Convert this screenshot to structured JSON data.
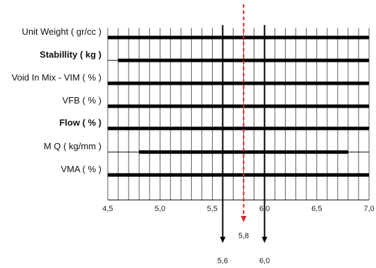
{
  "chart_data": {
    "type": "line",
    "xlim": [
      4.5,
      7.0
    ],
    "x_ticks": [
      "4,5",
      "5,0",
      "5,5",
      "6,0",
      "6,5",
      "7,0"
    ],
    "grid": true,
    "rows": [
      {
        "label": "Unit Weight ( gr/cc )",
        "bold": false,
        "range": [
          4.5,
          7.0
        ]
      },
      {
        "label": "Stabillity ( kg )",
        "bold": true,
        "range": [
          4.6,
          7.0
        ]
      },
      {
        "label": "Void In Mix - VIM ( % )",
        "bold": false,
        "range": [
          4.5,
          7.0
        ]
      },
      {
        "label": "VFB ( % )",
        "bold": false,
        "range": [
          4.5,
          7.0
        ]
      },
      {
        "label": "Flow ( % )",
        "bold": true,
        "range": [
          4.5,
          7.0
        ]
      },
      {
        "label": "M Q ( kg/mm )",
        "bold": false,
        "range": [
          4.8,
          6.8
        ]
      },
      {
        "label": "VMA ( % )",
        "bold": false,
        "range": [
          4.5,
          7.0
        ]
      }
    ],
    "markers": [
      {
        "value": 5.6,
        "label": "5,6",
        "style": "solid",
        "color": "#000000"
      },
      {
        "value": 5.8,
        "label": "5,8",
        "style": "dashed",
        "color": "#e02020"
      },
      {
        "value": 6.0,
        "label": "6,0",
        "style": "solid",
        "color": "#000000"
      }
    ]
  }
}
